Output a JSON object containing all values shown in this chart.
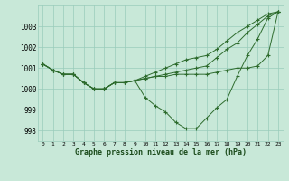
{
  "xlabel": "Graphe pression niveau de la mer (hPa)",
  "background_color": "#c8e8d8",
  "grid_color": "#99ccbb",
  "line_color": "#2d6b2d",
  "ylim": [
    997.5,
    1004.0
  ],
  "yticks": [
    998,
    999,
    1000,
    1001,
    1002,
    1003
  ],
  "xlim": [
    -0.5,
    23.5
  ],
  "x_ticks": [
    0,
    1,
    2,
    3,
    4,
    5,
    6,
    7,
    8,
    9,
    10,
    11,
    12,
    13,
    14,
    15,
    16,
    17,
    18,
    19,
    20,
    21,
    22,
    23
  ],
  "series": [
    [
      1001.2,
      1000.9,
      1000.7,
      1000.7,
      1000.3,
      1000.0,
      1000.0,
      1000.3,
      1000.3,
      1000.4,
      999.6,
      999.2,
      998.9,
      998.4,
      998.1,
      998.1,
      998.6,
      999.1,
      999.5,
      1000.6,
      1001.6,
      1002.4,
      1003.4,
      1003.7
    ],
    [
      1001.2,
      1000.9,
      1000.7,
      1000.7,
      1000.3,
      1000.0,
      1000.0,
      1000.3,
      1000.3,
      1000.4,
      1000.5,
      1000.6,
      1000.6,
      1000.7,
      1000.7,
      1000.7,
      1000.7,
      1000.8,
      1000.9,
      1001.0,
      1001.0,
      1001.1,
      1001.6,
      1003.7
    ],
    [
      1001.2,
      1000.9,
      1000.7,
      1000.7,
      1000.3,
      1000.0,
      1000.0,
      1000.3,
      1000.3,
      1000.4,
      1000.5,
      1000.6,
      1000.7,
      1000.8,
      1000.9,
      1001.0,
      1001.1,
      1001.5,
      1001.9,
      1002.2,
      1002.7,
      1003.1,
      1003.5,
      1003.7
    ],
    [
      1001.2,
      1000.9,
      1000.7,
      1000.7,
      1000.3,
      1000.0,
      1000.0,
      1000.3,
      1000.3,
      1000.4,
      1000.6,
      1000.8,
      1001.0,
      1001.2,
      1001.4,
      1001.5,
      1001.6,
      1001.9,
      1002.3,
      1002.7,
      1003.0,
      1003.3,
      1003.6,
      1003.7
    ]
  ]
}
